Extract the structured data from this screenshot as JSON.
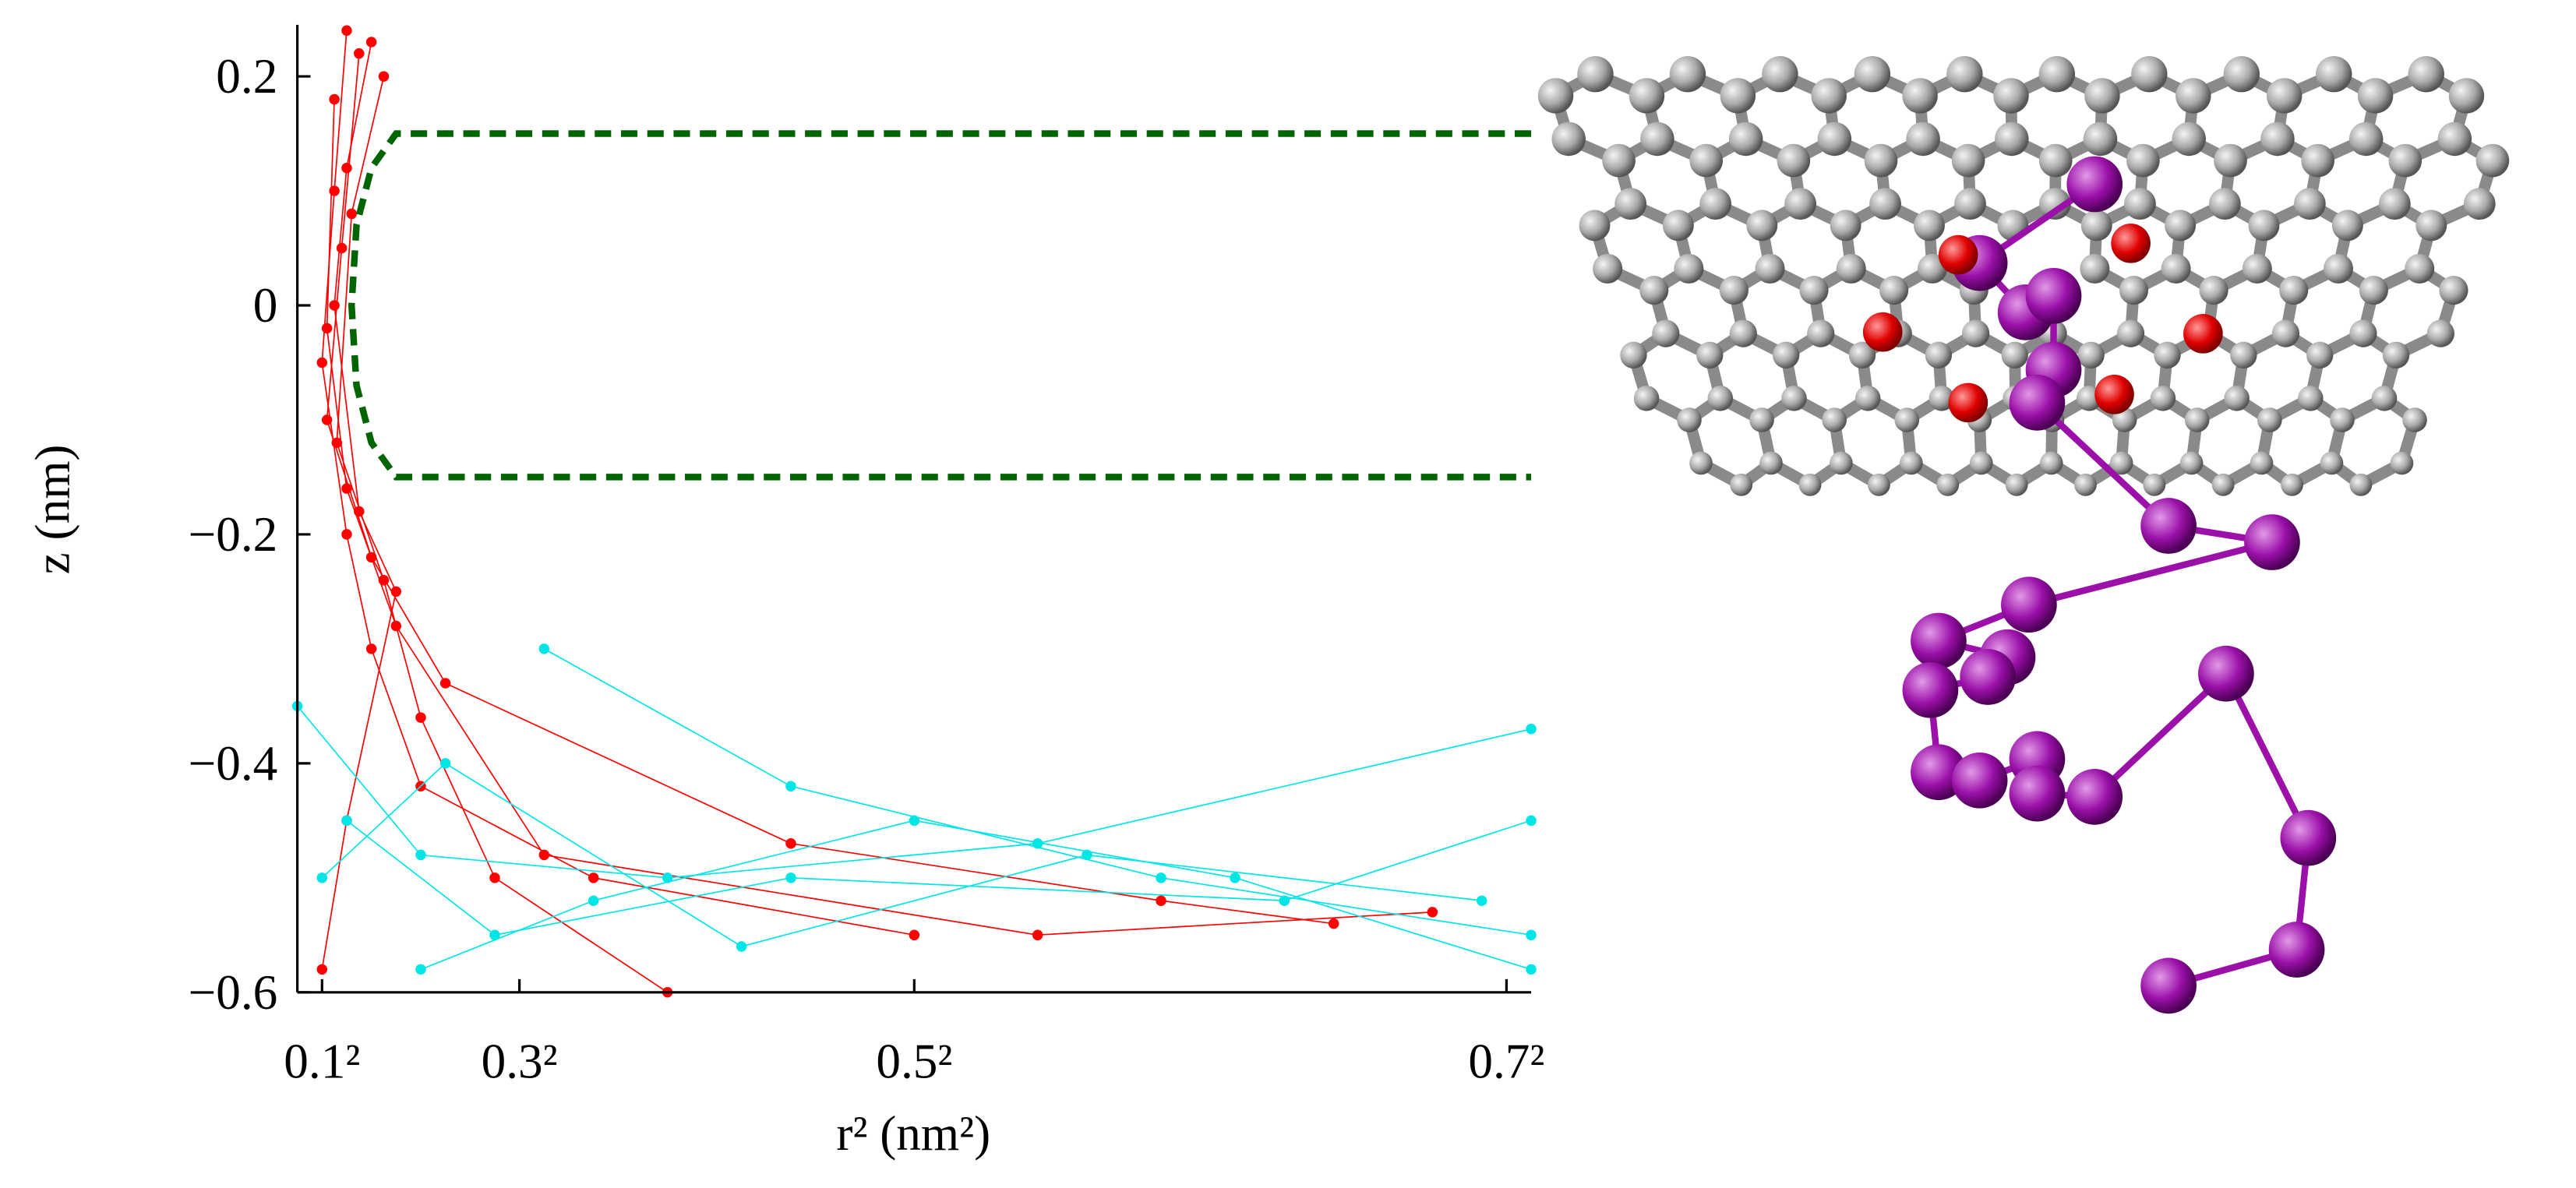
{
  "chart_data": {
    "type": "line",
    "x_label": "r² (nm²)",
    "y_label": "z (nm)",
    "xlim": [
      0,
      0.5
    ],
    "ylim": [
      -0.6,
      0.245
    ],
    "xticks": [
      {
        "value": 0.01,
        "label": "0.1²"
      },
      {
        "value": 0.09,
        "label": "0.3²"
      },
      {
        "value": 0.25,
        "label": "0.5²"
      },
      {
        "value": 0.49,
        "label": "0.7²"
      }
    ],
    "yticks": [
      {
        "value": -0.6,
        "label": "−0.6"
      },
      {
        "value": -0.4,
        "label": "−0.4"
      },
      {
        "value": -0.2,
        "label": "−0.2"
      },
      0,
      0.2
    ],
    "series": [
      {
        "color": "#ff0000",
        "x": [
          0.02,
          0.015,
          0.01,
          0.02,
          0.03,
          0.05,
          0.12,
          0.25
        ],
        "values": [
          0.24,
          0.1,
          -0.05,
          -0.2,
          -0.3,
          -0.42,
          -0.5,
          -0.55
        ]
      },
      {
        "color": "#ff0000",
        "x": [
          0.03,
          0.02,
          0.015,
          0.025,
          0.04,
          0.02,
          0.01
        ],
        "values": [
          0.23,
          0.12,
          0,
          -0.18,
          -0.25,
          -0.45,
          -0.58
        ]
      },
      {
        "color": "#ff0000",
        "x": [
          0.025,
          0.018,
          0.012,
          0.03,
          0.06,
          0.2,
          0.35,
          0.42
        ],
        "values": [
          0.22,
          0.05,
          -0.1,
          -0.22,
          -0.33,
          -0.47,
          -0.52,
          -0.54
        ]
      },
      {
        "color": "#ff0000",
        "x": [
          0.035,
          0.022,
          0.016,
          0.035,
          0.05,
          0.08,
          0.15
        ],
        "values": [
          0.2,
          0.08,
          -0.12,
          -0.24,
          -0.36,
          -0.5,
          -0.6
        ]
      },
      {
        "color": "#ff0000",
        "x": [
          0.015,
          0.012,
          0.02,
          0.04,
          0.1,
          0.3,
          0.46
        ],
        "values": [
          0.18,
          -0.02,
          -0.16,
          -0.28,
          -0.48,
          -0.55,
          -0.53
        ]
      },
      {
        "color": "#00e5e5",
        "x": [
          0.1,
          0.2,
          0.35,
          0.5
        ],
        "values": [
          -0.3,
          -0.42,
          -0.5,
          -0.55
        ]
      },
      {
        "color": "#00e5e5",
        "x": [
          0,
          0.05,
          0.15,
          0.3,
          0.5
        ],
        "values": [
          -0.35,
          -0.48,
          -0.5,
          -0.47,
          -0.37
        ]
      },
      {
        "color": "#00e5e5",
        "x": [
          0.02,
          0.08,
          0.2,
          0.4,
          0.5
        ],
        "values": [
          -0.45,
          -0.55,
          -0.5,
          -0.52,
          -0.45
        ]
      },
      {
        "color": "#00e5e5",
        "x": [
          0.05,
          0.12,
          0.25,
          0.38,
          0.5
        ],
        "values": [
          -0.58,
          -0.52,
          -0.45,
          -0.5,
          -0.58
        ]
      },
      {
        "color": "#00e5e5",
        "x": [
          0.01,
          0.06,
          0.18,
          0.32,
          0.48
        ],
        "values": [
          -0.5,
          -0.4,
          -0.56,
          -0.48,
          -0.52
        ]
      },
      {
        "color": "#006400",
        "dashed": true,
        "x": [
          0.5,
          0.04,
          0.03,
          0.024,
          0.022,
          0.024,
          0.03,
          0.04,
          0.5
        ],
        "values": [
          0.15,
          0.15,
          0.12,
          0.07,
          0,
          -0.07,
          -0.12,
          -0.15,
          -0.15
        ]
      }
    ]
  }
}
